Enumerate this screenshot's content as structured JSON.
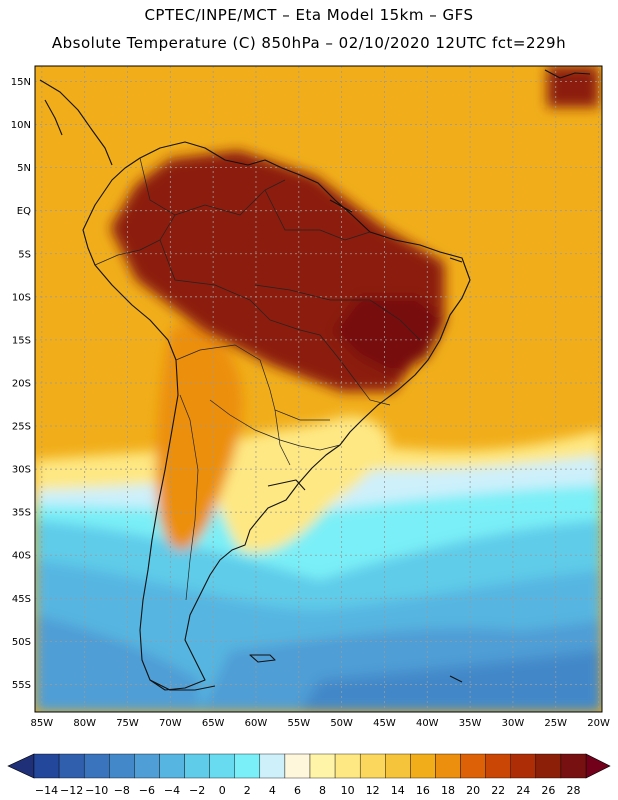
{
  "title_line1": "CPTEC/INPE/MCT –  Eta Model 15km – GFS",
  "title_line2": "Absolute Temperature (C) 850hPa – 02/10/2020 12UTC fct=229h",
  "lat_labels": [
    "15N",
    "10N",
    "5N",
    "EQ",
    "5S",
    "10S",
    "15S",
    "20S",
    "25S",
    "30S",
    "35S",
    "40S",
    "45S",
    "50S",
    "55S"
  ],
  "lon_labels": [
    "85W",
    "80W",
    "75W",
    "70W",
    "65W",
    "60W",
    "55W",
    "50W",
    "45W",
    "40W",
    "35W",
    "30W",
    "25W",
    "20W"
  ],
  "lat_values": [
    15,
    10,
    5,
    0,
    -5,
    -10,
    -15,
    -20,
    -25,
    -30,
    -35,
    -40,
    -45,
    -50,
    -55
  ],
  "lon_values": [
    -85,
    -80,
    -75,
    -70,
    -65,
    -60,
    -55,
    -50,
    -45,
    -40,
    -35,
    -30,
    -25,
    -20
  ],
  "extent": {
    "lon": [
      -85.8,
      -19.6
    ],
    "lat": [
      -58.2,
      16.8
    ]
  },
  "colorbar": {
    "labels": [
      "-14",
      "-12",
      "-10",
      "-8",
      "-6",
      "-4",
      "-2",
      "0",
      "2",
      "4",
      "6",
      "8",
      "10",
      "12",
      "14",
      "16",
      "18",
      "20",
      "22",
      "24",
      "26",
      "28"
    ],
    "colors": [
      "#23479a",
      "#2f5fad",
      "#3a74bd",
      "#4388c9",
      "#4f9ed6",
      "#57b6e1",
      "#5fcce9",
      "#68dbf0",
      "#7aeff7",
      "#cdf0fb",
      "#fff7dc",
      "#fff4a8",
      "#fee883",
      "#fbd75d",
      "#f5c43a",
      "#f1ae1a",
      "#ec8f0e",
      "#dc6107",
      "#c94604",
      "#ad2e06",
      "#8c1f08",
      "#771010"
    ],
    "end_low": "#1f2f78",
    "end_high": "#72001a"
  },
  "temperature_regions": [
    {
      "temp": 26,
      "lonlat": [
        [
          -70,
          6
        ],
        [
          -62,
          7
        ],
        [
          -53,
          4
        ],
        [
          -45,
          -2
        ],
        [
          -38,
          -6
        ],
        [
          -38,
          -13
        ],
        [
          -41,
          -17
        ],
        [
          -44,
          -21
        ],
        [
          -50,
          -21
        ],
        [
          -58,
          -18
        ],
        [
          -66,
          -14
        ],
        [
          -74,
          -8
        ],
        [
          -77,
          -2
        ],
        [
          -74,
          3
        ]
      ]
    },
    {
      "temp": 28,
      "lonlat": [
        [
          -48,
          -10
        ],
        [
          -41,
          -10
        ],
        [
          -38,
          -13
        ],
        [
          -40,
          -17
        ],
        [
          -44,
          -19
        ],
        [
          -48,
          -17
        ],
        [
          -51,
          -14
        ]
      ]
    },
    {
      "temp": 26,
      "lonlat": [
        [
          -26,
          16.8
        ],
        [
          -20,
          16.8
        ],
        [
          -20,
          12
        ],
        [
          -26,
          12
        ]
      ]
    }
  ]
}
